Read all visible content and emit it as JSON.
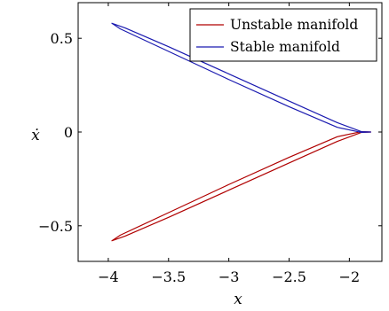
{
  "chart_data": {
    "type": "line",
    "xlabel": "x",
    "ylabel": "ẋ",
    "xlim": [
      -4.25,
      -1.73
    ],
    "ylim": [
      -0.69,
      0.69
    ],
    "x_ticks": [
      -4,
      -3.5,
      -3,
      -2.5,
      -2
    ],
    "x_tick_labels": [
      "−4",
      "−3.5",
      "−3",
      "−2.5",
      "−2"
    ],
    "y_ticks": [
      -0.5,
      0,
      0.5
    ],
    "y_tick_labels": [
      "−0.5",
      "0",
      "0.5"
    ],
    "grid": false,
    "legend_position": "top-right",
    "series": [
      {
        "name": "Unstable manifold",
        "color": "#b00000",
        "x": [
          -1.82,
          -1.9,
          -2.1,
          -2.5,
          -3.0,
          -3.5,
          -3.86,
          -3.97,
          -3.9,
          -3.5,
          -3.0,
          -2.5,
          -2.1,
          -1.9,
          -1.82
        ],
        "y": [
          0.0,
          -0.002,
          -0.05,
          -0.165,
          -0.31,
          -0.455,
          -0.555,
          -0.58,
          -0.55,
          -0.43,
          -0.28,
          -0.135,
          -0.025,
          0.002,
          0.0
        ]
      },
      {
        "name": "Stable manifold",
        "color": "#1a1ab0",
        "x": [
          -1.82,
          -1.9,
          -2.1,
          -2.5,
          -3.0,
          -3.5,
          -3.86,
          -3.97,
          -3.9,
          -3.5,
          -3.0,
          -2.5,
          -2.1,
          -1.9,
          -1.82
        ],
        "y": [
          0.0,
          0.002,
          0.05,
          0.165,
          0.31,
          0.455,
          0.555,
          0.58,
          0.55,
          0.43,
          0.28,
          0.135,
          0.025,
          -0.002,
          0.0
        ]
      }
    ]
  }
}
